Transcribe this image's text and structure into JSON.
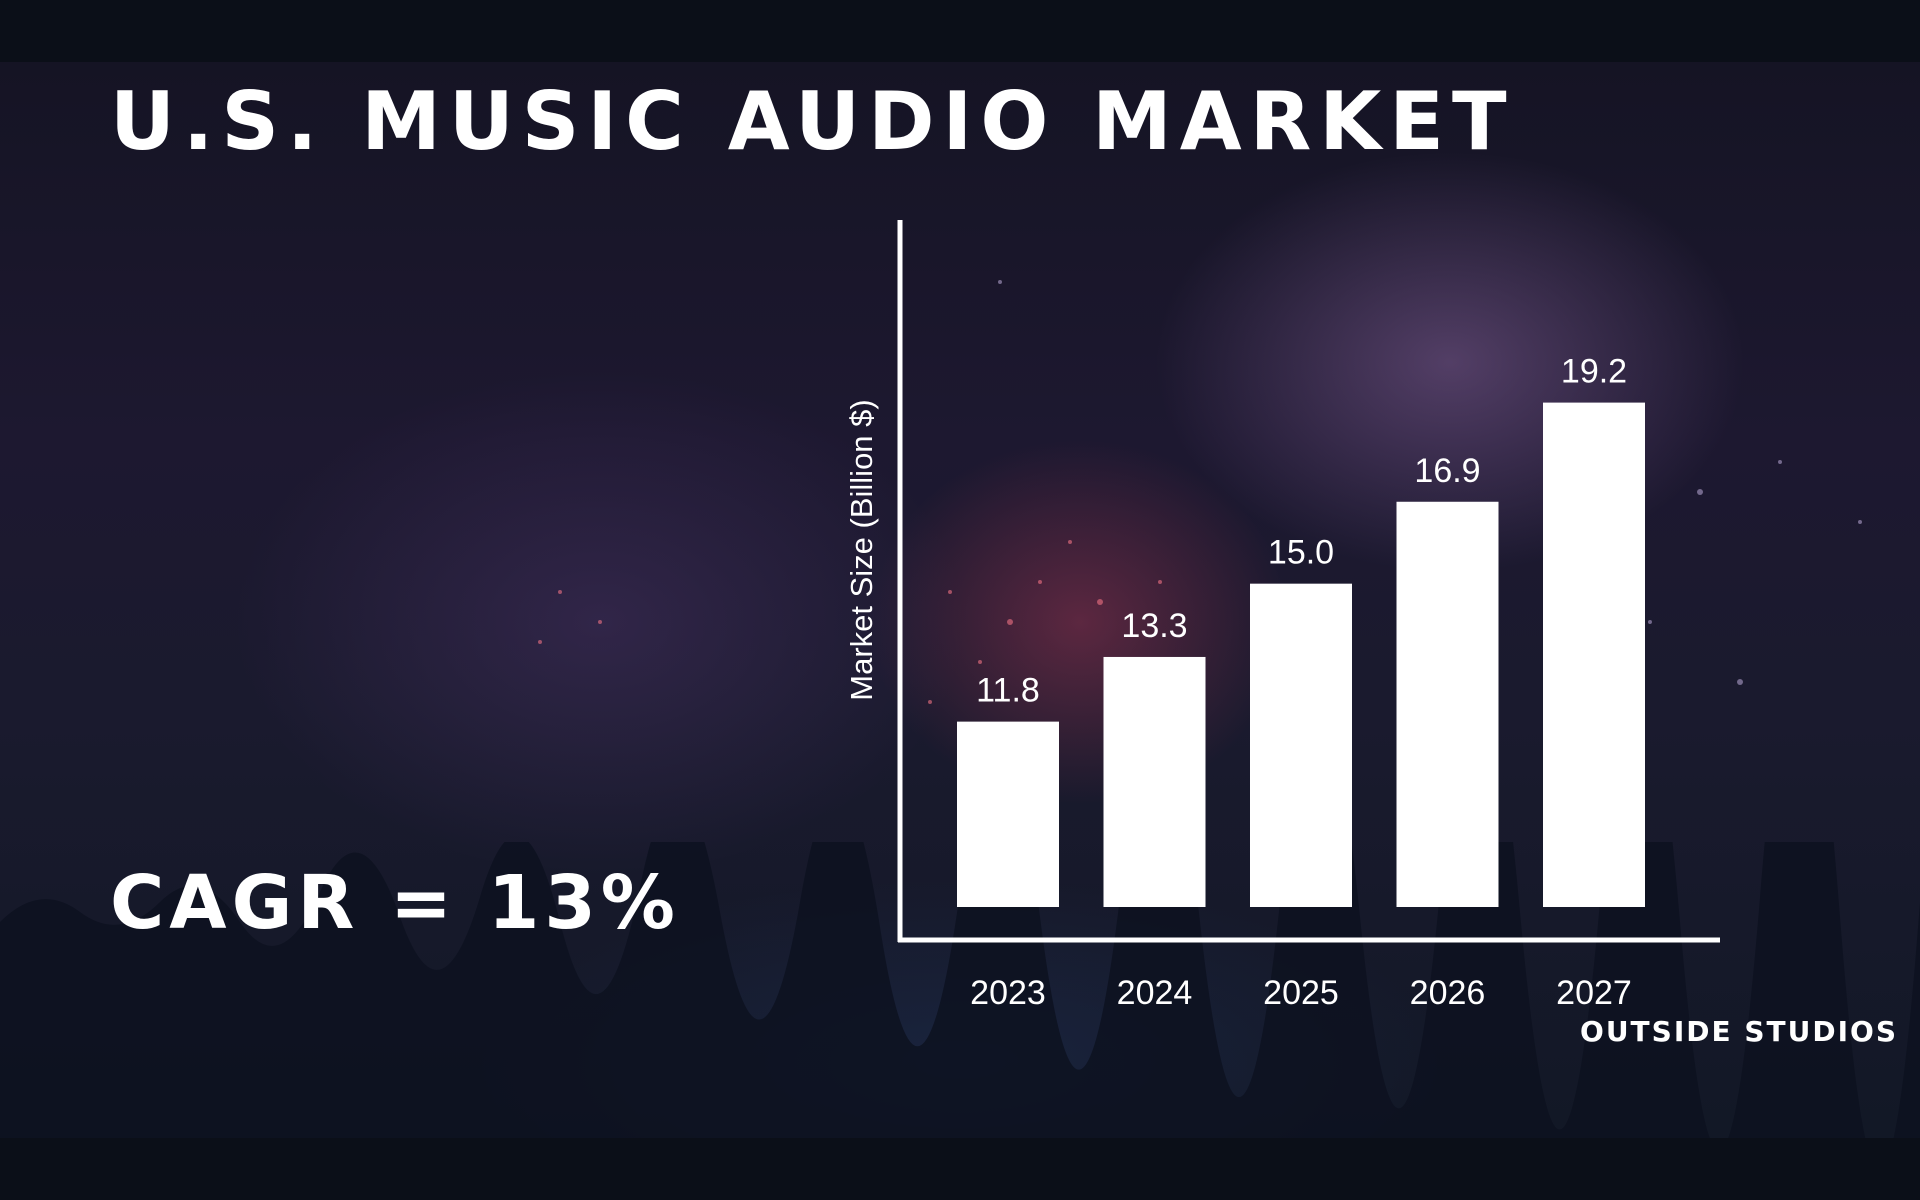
{
  "title": "U.S. MUSIC AUDIO MARKET",
  "cagr": "CAGR = 13%",
  "brand": "OUTSIDE STUDIOS",
  "colors": {
    "background": "#0b0f18",
    "bar": "#ffffff",
    "axis": "#ffffff",
    "text": "#ffffff"
  },
  "chart_data": {
    "type": "bar",
    "title": "U.S. MUSIC AUDIO MARKET",
    "xlabel": "",
    "ylabel": "Market Size (Billion $)",
    "categories": [
      "2023",
      "2024",
      "2025",
      "2026",
      "2027"
    ],
    "values": [
      11.8,
      13.3,
      15.0,
      16.9,
      19.2
    ],
    "data_labels": [
      "11.8",
      "13.3",
      "15.0",
      "16.9",
      "19.2"
    ],
    "ylim": [
      7.5,
      21
    ],
    "grid": false,
    "legend": "none"
  }
}
